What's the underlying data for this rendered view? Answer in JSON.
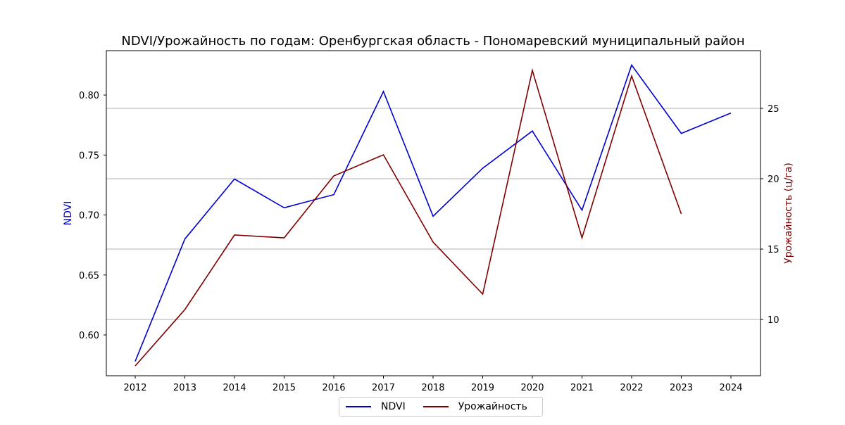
{
  "chart_data": {
    "type": "line",
    "title": "NDVI/Урожайность по годам: Оренбургская область - Пономаревский муниципальный район",
    "xlabel": "",
    "y_left_label": "NDVI",
    "y_right_label": "Урожайность (ц/га)",
    "categories": [
      "2012",
      "2013",
      "2014",
      "2015",
      "2016",
      "2017",
      "2018",
      "2019",
      "2020",
      "2021",
      "2022",
      "2023",
      "2024"
    ],
    "y_left_ticks": [
      "0.60",
      "0.65",
      "0.70",
      "0.75",
      "0.80"
    ],
    "y_right_ticks": [
      "10",
      "15",
      "20",
      "25"
    ],
    "y_left_lim": [
      0.566,
      0.837
    ],
    "y_right_lim": [
      6.0,
      29.1
    ],
    "grid": "horizontal, right axis",
    "legend_position": "bottom-center",
    "series": [
      {
        "name": "NDVI",
        "axis": "left",
        "color": "#0000cc",
        "values": [
          0.578,
          0.68,
          0.73,
          0.706,
          0.717,
          0.803,
          0.699,
          0.739,
          0.77,
          0.704,
          0.825,
          0.768,
          0.785
        ]
      },
      {
        "name": "Урожайность",
        "axis": "right",
        "color": "#800000",
        "values": [
          6.7,
          10.7,
          16.0,
          15.8,
          20.2,
          21.7,
          15.5,
          11.8,
          27.7,
          15.8,
          27.3,
          17.5,
          null
        ]
      }
    ]
  }
}
